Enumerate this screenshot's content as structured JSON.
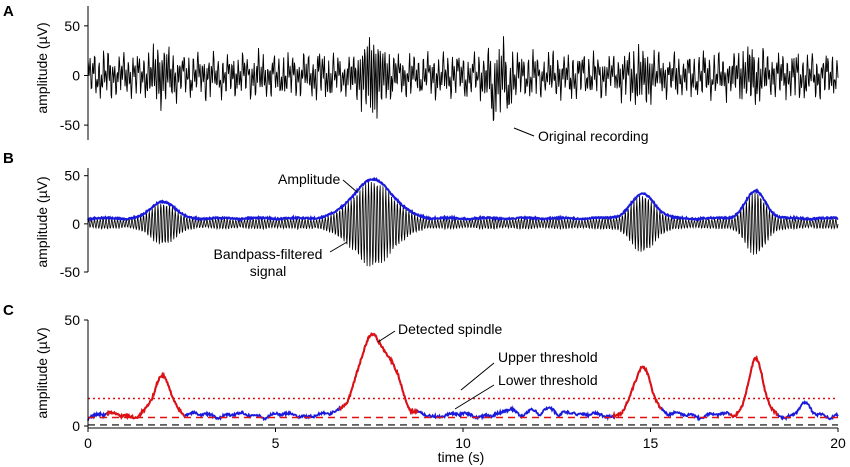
{
  "chart_data": [
    {
      "type": "line",
      "panel": "A",
      "ylabel": "amplitude (µV)",
      "xlabel": "",
      "xlim": [
        0,
        20
      ],
      "ylim": [
        -65,
        70
      ],
      "yticks": [
        -50,
        0,
        50
      ],
      "ytick_labels": [
        "-50",
        "0",
        "50"
      ],
      "series": [
        {
          "role": "raw",
          "color": "#000000",
          "amp": 16,
          "bursts": [
            [
              2.0,
              14
            ],
            [
              7.6,
              28
            ],
            [
              11.0,
              18
            ],
            [
              14.8,
              14
            ],
            [
              17.7,
              12
            ]
          ],
          "noise": 9,
          "seed": 11
        }
      ],
      "annotations": [
        {
          "text": "Original recording",
          "x": 11.4,
          "y": -58
        }
      ]
    },
    {
      "type": "line",
      "panel": "B",
      "ylabel": "amplitude (µV)",
      "xlabel": "",
      "xlim": [
        0,
        20
      ],
      "ylim": [
        -50,
        58
      ],
      "yticks": [
        -50,
        0,
        50
      ],
      "ytick_labels": [
        "-50",
        "0",
        "50"
      ],
      "series": [
        {
          "role": "bandpass",
          "color": "#000000"
        },
        {
          "role": "envelope",
          "color": "#1a1adb"
        }
      ],
      "bursts": [
        [
          2.0,
          18,
          0.42
        ],
        [
          7.6,
          40,
          0.75
        ],
        [
          14.8,
          25,
          0.45
        ],
        [
          17.8,
          28,
          0.38
        ]
      ],
      "annotations": [
        {
          "text": "Amplitude",
          "x": 7.3,
          "y": 42
        },
        {
          "text": "Bandpass-filtered",
          "x": 6.8,
          "y": -30
        },
        {
          "text": "signal",
          "x": 6.8,
          "y": -30
        }
      ]
    },
    {
      "type": "line",
      "panel": "C",
      "ylabel": "amplitude (µV)",
      "xlabel": "time (s)",
      "xlim": [
        0,
        20
      ],
      "ylim": [
        0,
        50
      ],
      "xticks": [
        0,
        5,
        10,
        15,
        20
      ],
      "xtick_labels": [
        "0",
        "5",
        "10",
        "15",
        "20"
      ],
      "yticks": [
        0,
        50
      ],
      "ytick_labels": [
        "0",
        "50"
      ],
      "upper_threshold": 13,
      "lower_threshold": 4,
      "zero_line": 0.5,
      "envelope_color": "#1a1adb",
      "spindle_color": "#e01010",
      "spindles": [
        [
          0.5,
          2.6
        ],
        [
          6.7,
          8.8
        ],
        [
          14.0,
          15.3
        ],
        [
          17.1,
          18.4
        ]
      ],
      "annotations": [
        {
          "text": "Detected spindle",
          "x": 7.7,
          "y": 37
        },
        {
          "text": "Upper threshold",
          "x": 10.0,
          "y": 14
        },
        {
          "text": "Lower threshold",
          "x": 10.0,
          "y": 5
        }
      ]
    }
  ]
}
